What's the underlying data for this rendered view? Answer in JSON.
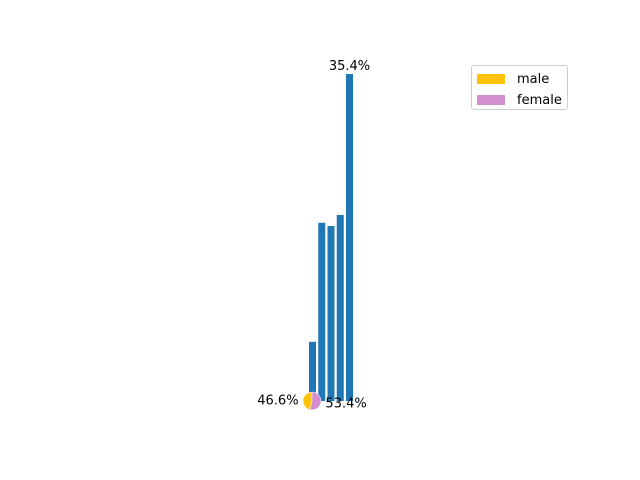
{
  "chart_data": [
    {
      "type": "bar",
      "values_percent": [
        18.1,
        54.5,
        53.5,
        56.9,
        100.0
      ],
      "color": "#1f77b4",
      "data_labels": [
        "",
        "",
        "",
        "",
        "35.4%"
      ],
      "title": "",
      "xlabel": "",
      "ylabel": "",
      "grid": false
    },
    {
      "type": "pie",
      "slices": [
        {
          "name": "male",
          "value": 46.6,
          "label": "46.6%",
          "color": "#FFC20A"
        },
        {
          "name": "female",
          "value": 53.4,
          "label": "53.4%",
          "color": "#D18FD1"
        }
      ],
      "legend_position": "top-right"
    }
  ],
  "legend": {
    "items": [
      {
        "label": "male",
        "color": "#FFC20A"
      },
      {
        "label": "female",
        "color": "#D18FD1"
      }
    ]
  }
}
